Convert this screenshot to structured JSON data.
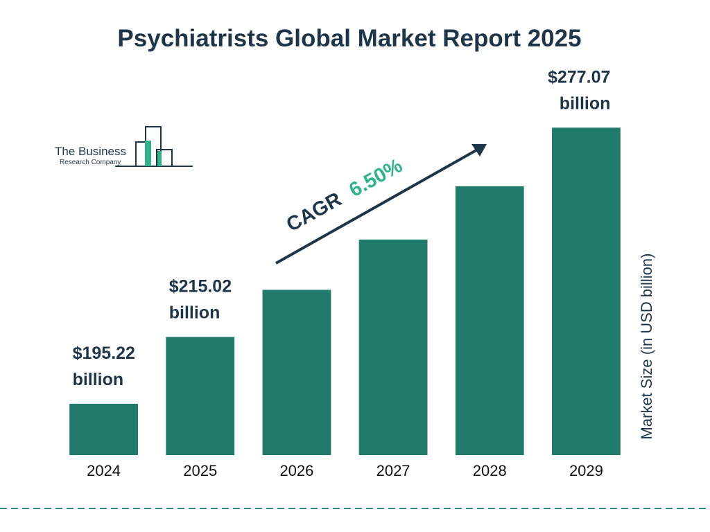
{
  "chart_data": {
    "type": "bar",
    "title": "Psychiatrists Global Market Report 2025",
    "y_label": "Market Size (in USD billion)",
    "categories": [
      "2024",
      "2025",
      "2026",
      "2027",
      "2028",
      "2029"
    ],
    "values": [
      195.22,
      215.02,
      229.0,
      243.9,
      259.7,
      277.07
    ],
    "value_labels": [
      "$195.22 billion",
      "$215.02 billion",
      null,
      null,
      null,
      "$277.07 billion"
    ],
    "color": "#217b6c",
    "ylim": [
      180,
      280
    ],
    "annotation": {
      "label": "CAGR",
      "value": "6.50%"
    },
    "logo": {
      "line1": "The Business",
      "line2": "Research Company"
    }
  }
}
